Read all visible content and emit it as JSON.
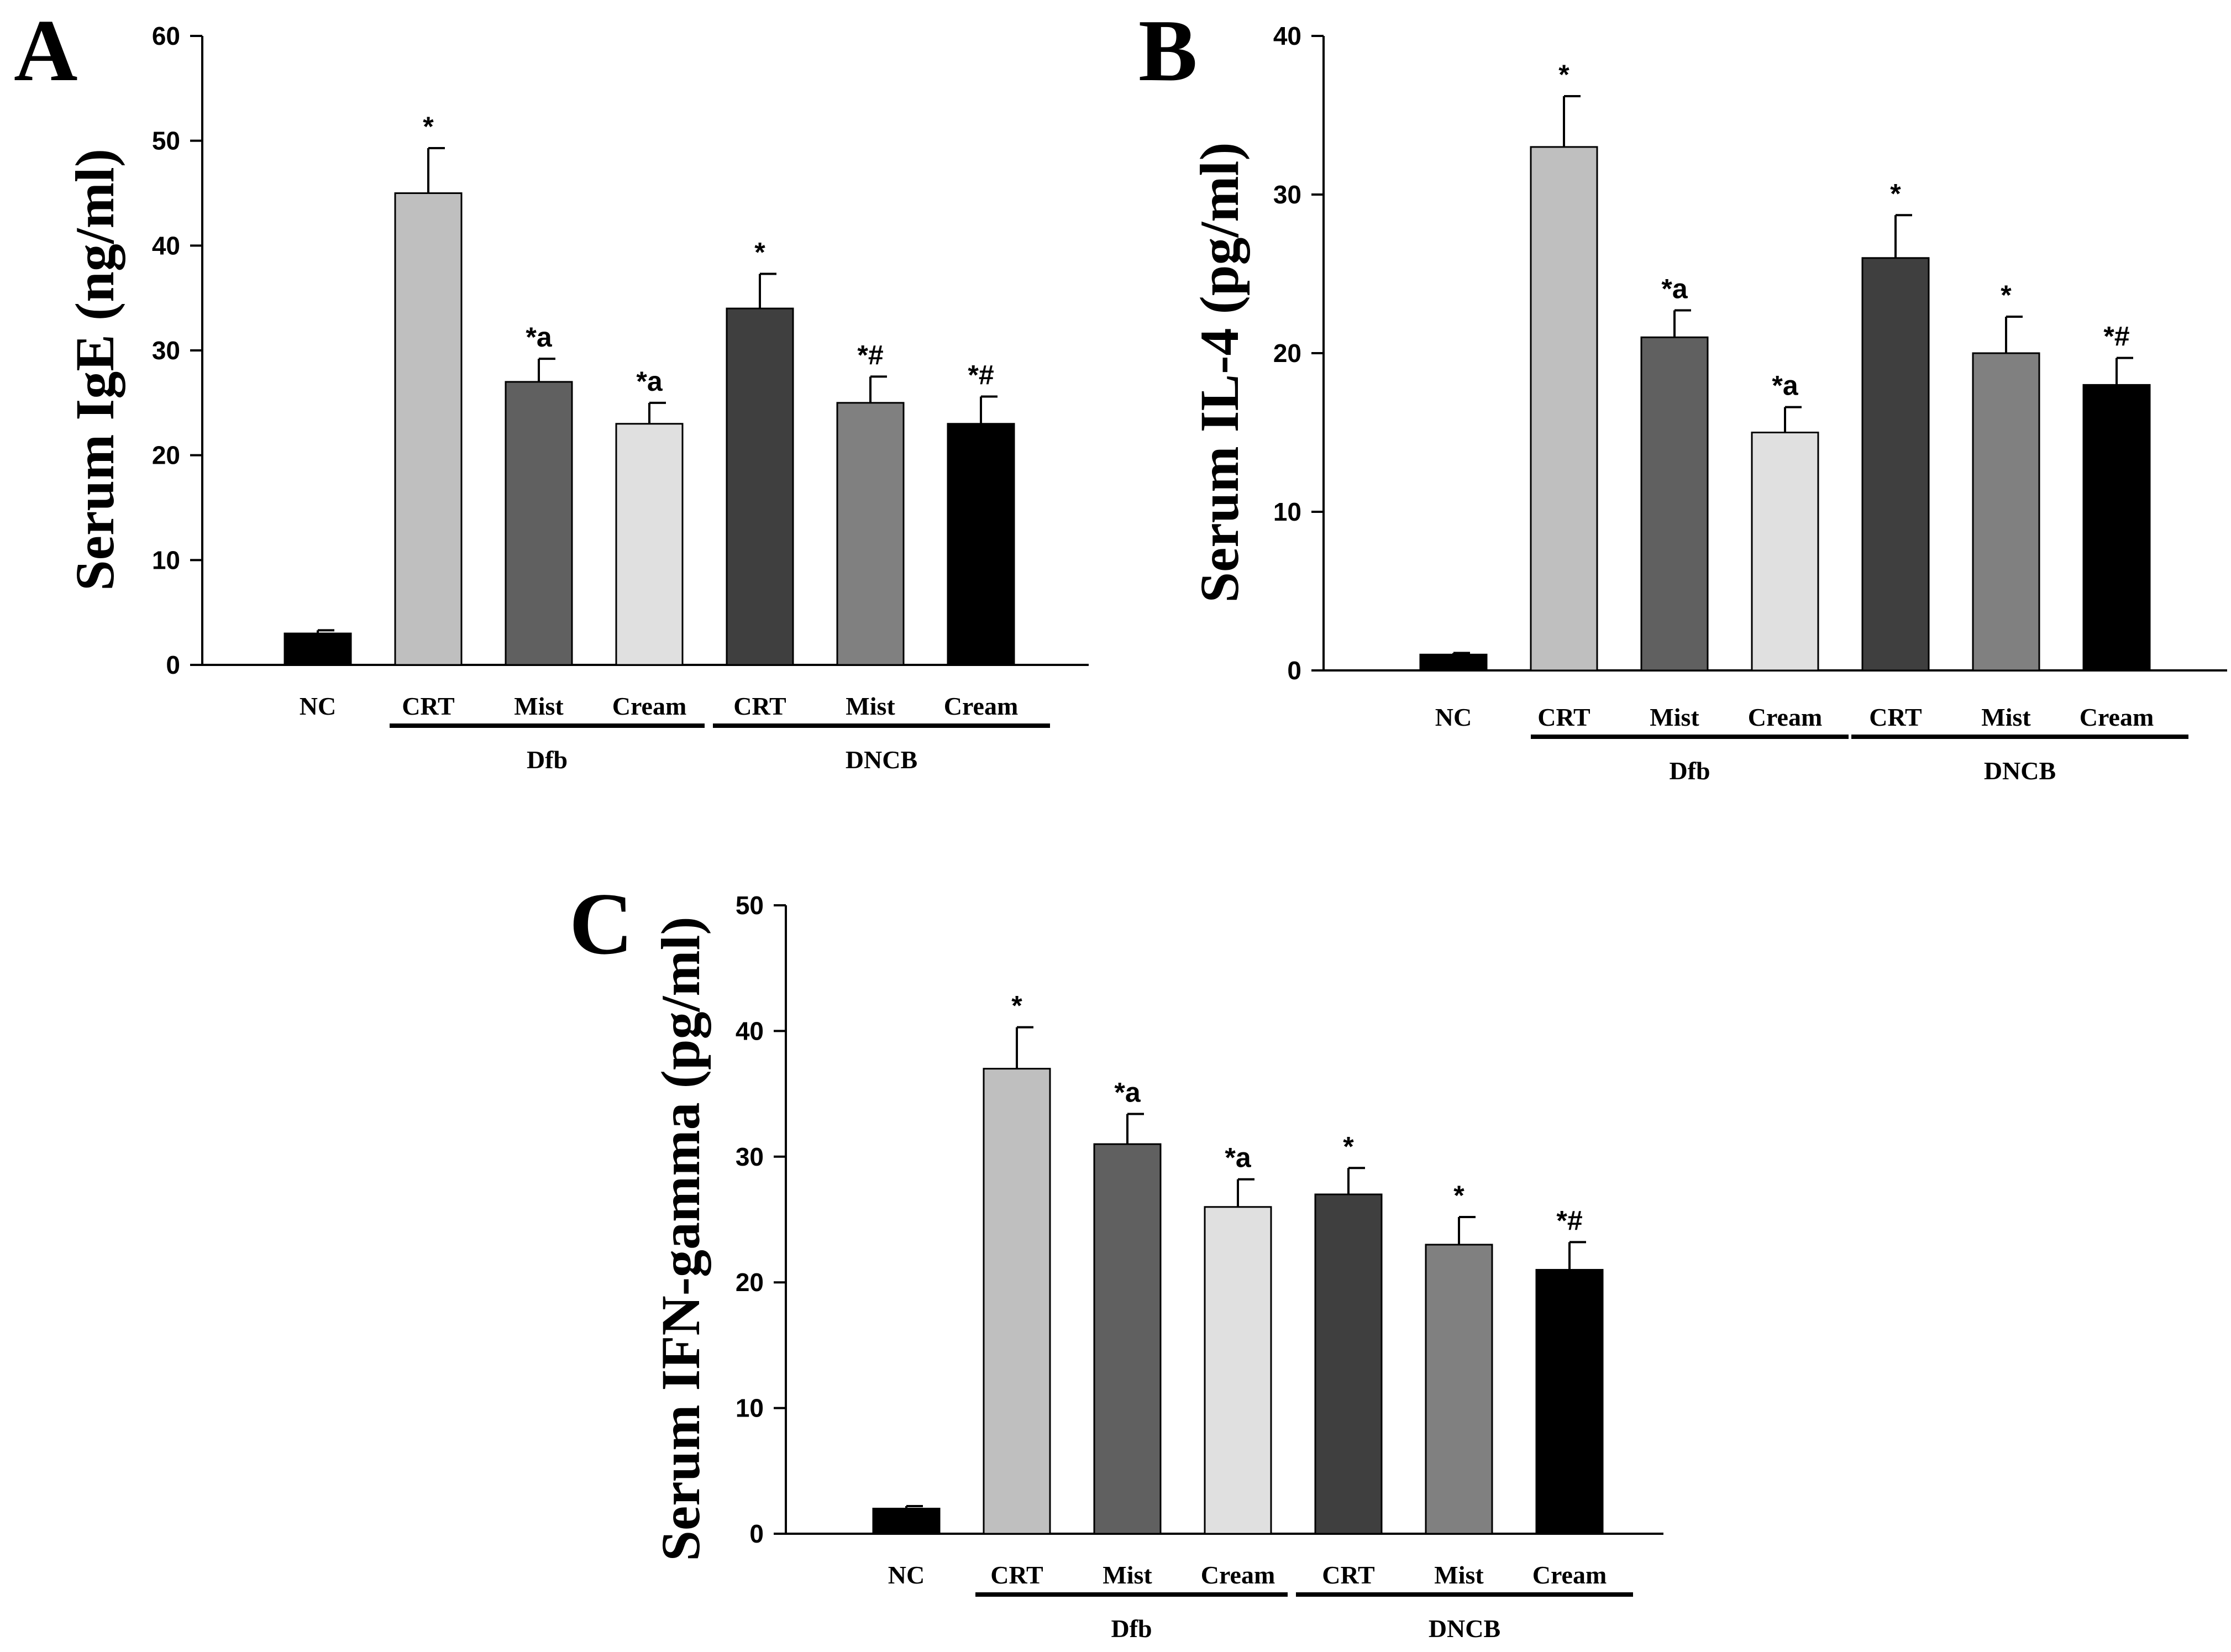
{
  "chart_data": [
    {
      "type": "bar",
      "panel": "A",
      "ylabel": "Serum IgE (ng/ml)",
      "ylim": [
        0,
        60
      ],
      "yticks": [
        0,
        10,
        20,
        30,
        40,
        50,
        60
      ],
      "categories": [
        "NC",
        "CRT",
        "Mist",
        "Cream",
        "CRT",
        "Mist",
        "Cream"
      ],
      "values": [
        3,
        45,
        27,
        23,
        34,
        25,
        23
      ],
      "errors": [
        0.3,
        4.3,
        2.2,
        2.0,
        3.3,
        2.5,
        2.6
      ],
      "annotations": [
        "",
        "*",
        "*a",
        "*a",
        "*",
        "*#",
        "*#"
      ],
      "colors": [
        "#000000",
        "#bfbfbf",
        "#606060",
        "#e0e0e0",
        "#3f3f3f",
        "#808080",
        "#000000"
      ],
      "groups": [
        {
          "label": "Dfb",
          "from": 1,
          "to": 3
        },
        {
          "label": "DNCB",
          "from": 4,
          "to": 6
        }
      ]
    },
    {
      "type": "bar",
      "panel": "B",
      "ylabel": "Serum IL-4 (pg/ml)",
      "ylim": [
        0,
        40
      ],
      "yticks": [
        0,
        10,
        20,
        30,
        40
      ],
      "categories": [
        "NC",
        "CRT",
        "Mist",
        "Cream",
        "CRT",
        "Mist",
        "Cream"
      ],
      "values": [
        1,
        33,
        21,
        15,
        26,
        20,
        18
      ],
      "errors": [
        0.1,
        3.2,
        1.7,
        1.6,
        2.7,
        2.3,
        1.7
      ],
      "annotations": [
        "",
        "*",
        "*a",
        "*a",
        "*",
        "*",
        "*#"
      ],
      "colors": [
        "#000000",
        "#bfbfbf",
        "#606060",
        "#e0e0e0",
        "#3f3f3f",
        "#808080",
        "#000000"
      ],
      "groups": [
        {
          "label": "Dfb",
          "from": 1,
          "to": 3
        },
        {
          "label": "DNCB",
          "from": 4,
          "to": 6
        }
      ]
    },
    {
      "type": "bar",
      "panel": "C",
      "ylabel": "Serum IFN-gamma (pg/ml)",
      "ylim": [
        0,
        50
      ],
      "yticks": [
        0,
        10,
        20,
        30,
        40,
        50
      ],
      "categories": [
        "NC",
        "CRT",
        "Mist",
        "Cream",
        "CRT",
        "Mist",
        "Cream"
      ],
      "values": [
        2,
        37,
        31,
        26,
        27,
        23,
        21
      ],
      "errors": [
        0.2,
        3.3,
        2.4,
        2.2,
        2.1,
        2.2,
        2.2
      ],
      "annotations": [
        "",
        "*",
        "*a",
        "*a",
        "*",
        "*",
        "*#"
      ],
      "colors": [
        "#000000",
        "#bfbfbf",
        "#606060",
        "#e0e0e0",
        "#3f3f3f",
        "#808080",
        "#000000"
      ],
      "groups": [
        {
          "label": "Dfb",
          "from": 1,
          "to": 3
        },
        {
          "label": "DNCB",
          "from": 4,
          "to": 6
        }
      ]
    }
  ]
}
